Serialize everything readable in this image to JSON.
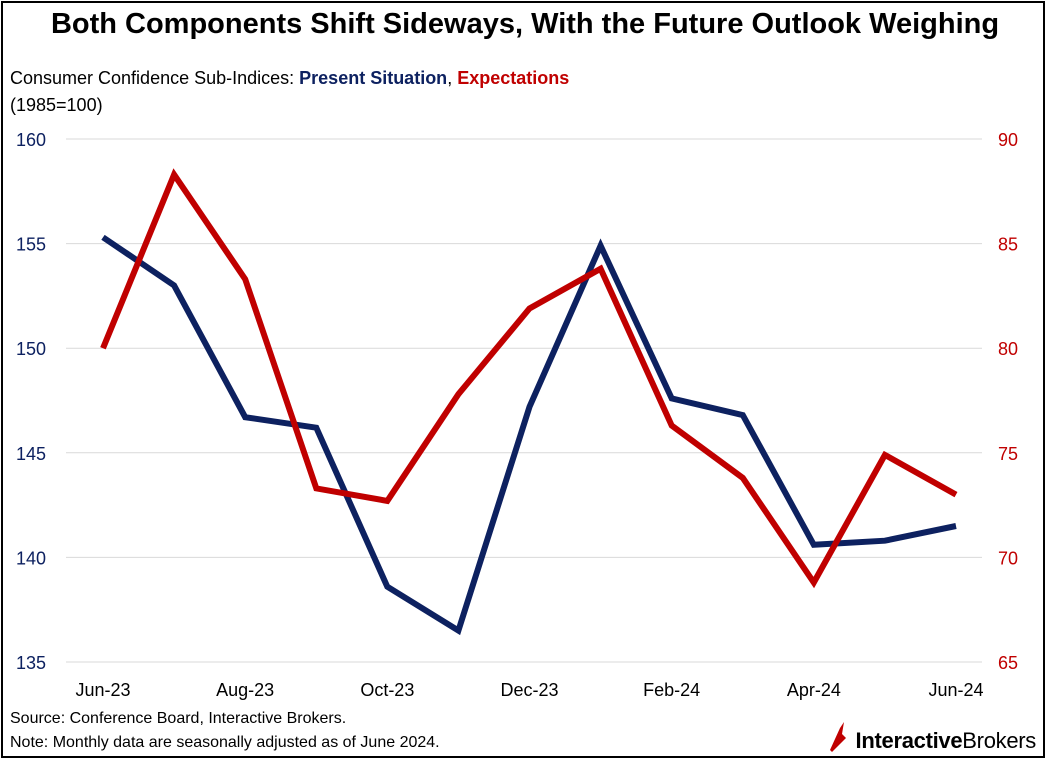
{
  "title": "Both Components Shift Sideways, With the Future Outlook Weighing",
  "subtitle": {
    "prefix": "Consumer Confidence Sub-Indices: ",
    "series1": "Present Situation",
    "separator": ", ",
    "series2": "Expectations",
    "unit": "(1985=100)"
  },
  "colors": {
    "present": "#0d2160",
    "expectations": "#c00000",
    "grid": "#d9d9d9"
  },
  "chart_data": {
    "type": "line",
    "x": [
      "Jun-23",
      "Jul-23",
      "Aug-23",
      "Sep-23",
      "Oct-23",
      "Nov-23",
      "Dec-23",
      "Jan-24",
      "Feb-24",
      "Mar-24",
      "Apr-24",
      "May-24",
      "Jun-24"
    ],
    "x_tick_labels": [
      "Jun-23",
      "Aug-23",
      "Oct-23",
      "Dec-23",
      "Feb-24",
      "Apr-24",
      "Jun-24"
    ],
    "series": [
      {
        "name": "Present Situation",
        "axis": "left",
        "values": [
          155.3,
          153.0,
          146.7,
          146.2,
          138.6,
          136.5,
          147.2,
          154.9,
          147.6,
          146.8,
          140.6,
          140.8,
          141.5
        ]
      },
      {
        "name": "Expectations",
        "axis": "right",
        "values": [
          80.0,
          88.3,
          83.3,
          73.3,
          72.7,
          77.8,
          81.9,
          83.8,
          76.3,
          73.8,
          68.8,
          74.9,
          73.0
        ]
      }
    ],
    "y_left": {
      "range": [
        135,
        160
      ],
      "ticks": [
        135,
        140,
        145,
        150,
        155,
        160
      ]
    },
    "y_right": {
      "range": [
        65,
        90
      ],
      "ticks": [
        65,
        70,
        75,
        80,
        85,
        90
      ]
    },
    "grid": true
  },
  "footer": {
    "source": "Source: Conference Board, Interactive Brokers.",
    "note": "Note: Monthly data are seasonally adjusted as of June 2024.",
    "logo_part1": "Interactive",
    "logo_part2": "Brokers"
  }
}
